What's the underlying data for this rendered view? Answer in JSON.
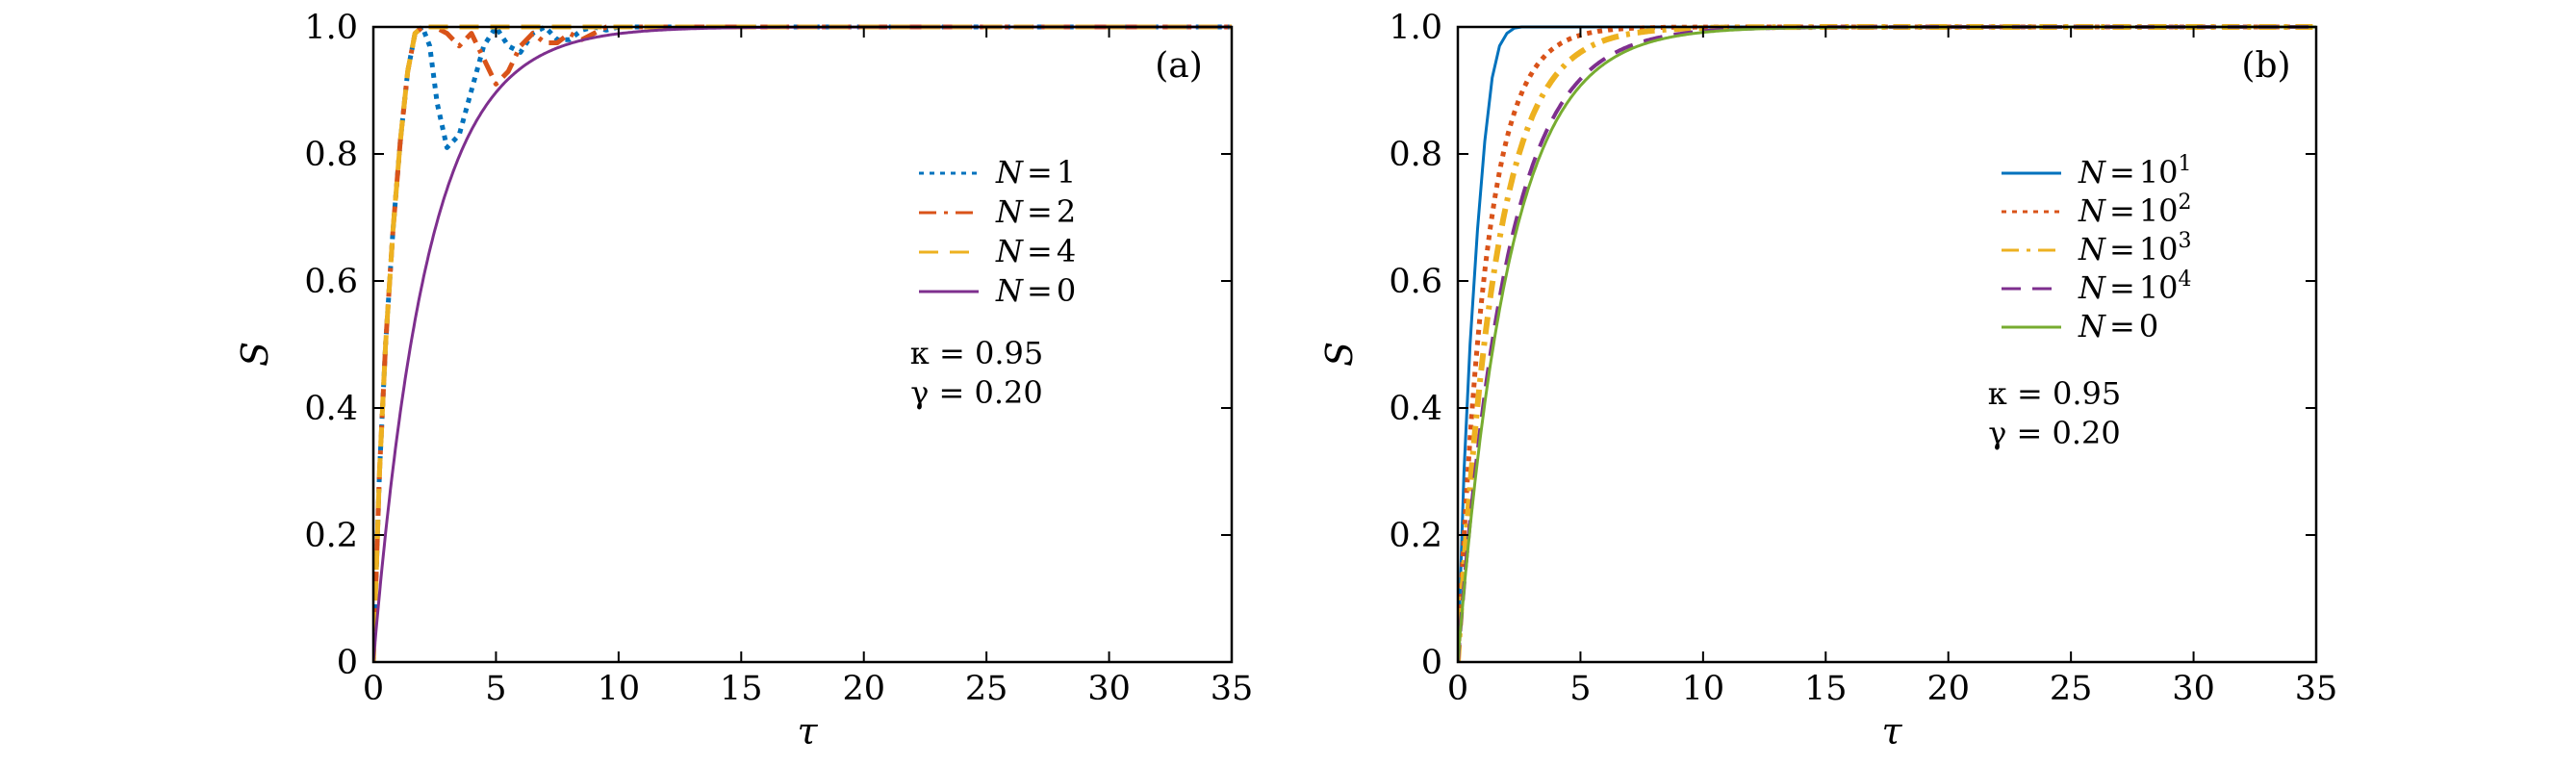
{
  "chart_data": [
    {
      "type": "line",
      "panel_label": "(a)",
      "xlabel": "τ",
      "ylabel": "S",
      "xlim": [
        0,
        35
      ],
      "ylim": [
        0,
        1.0
      ],
      "xticks": [
        "0",
        "5",
        "10",
        "15",
        "20",
        "25",
        "30",
        "35"
      ],
      "yticks": [
        "0",
        "0.2",
        "0.4",
        "0.6",
        "0.8",
        "1.0"
      ],
      "grid": false,
      "legend_position": "right, upper-middle",
      "legend": [
        {
          "var": "N",
          "eq": "=",
          "val": "1",
          "sup": "",
          "color": "#0072BD",
          "dash": "dotted"
        },
        {
          "var": "N",
          "eq": "=",
          "val": "2",
          "sup": "",
          "color": "#D95319",
          "dash": "dashdot"
        },
        {
          "var": "N",
          "eq": "=",
          "val": "4",
          "sup": "",
          "color": "#EDB120",
          "dash": "dashed"
        },
        {
          "var": "N",
          "eq": "=",
          "val": "0",
          "sup": "",
          "color": "#7E2F8E",
          "dash": "solid"
        }
      ],
      "params": [
        "κ = 0.95",
        "γ = 0.20"
      ],
      "series": [
        {
          "name": "N = 1",
          "color": "#0072BD",
          "dash": "dotted",
          "width": 5,
          "x": [
            0,
            0.25,
            0.5,
            0.8,
            1.1,
            1.4,
            1.7,
            2.0,
            2.3,
            2.6,
            3.0,
            3.5,
            4.0,
            4.5,
            5.0,
            5.5,
            6.0,
            6.5,
            7.0,
            7.5,
            8.0,
            8.5,
            9.0,
            9.5,
            10,
            12,
            35
          ],
          "y": [
            0,
            0.3,
            0.5,
            0.68,
            0.82,
            0.93,
            0.99,
            1.0,
            0.97,
            0.88,
            0.81,
            0.83,
            0.9,
            0.97,
            1.0,
            0.97,
            0.96,
            0.99,
            1.0,
            0.98,
            0.98,
            0.995,
            1.0,
            0.995,
            1.0,
            1.0,
            1.0
          ]
        },
        {
          "name": "N = 2",
          "color": "#D95319",
          "dash": "dashdot",
          "width": 5,
          "x": [
            0,
            0.25,
            0.5,
            0.8,
            1.1,
            1.4,
            1.7,
            2.0,
            2.5,
            3.0,
            3.5,
            4.0,
            4.5,
            5.0,
            5.5,
            6.0,
            6.5,
            7.0,
            7.5,
            8.0,
            8.5,
            9.0,
            9.5,
            10,
            12,
            35
          ],
          "y": [
            0,
            0.3,
            0.5,
            0.68,
            0.82,
            0.93,
            0.99,
            1.0,
            1.0,
            0.99,
            0.97,
            0.99,
            0.95,
            0.91,
            0.93,
            0.97,
            0.99,
            0.975,
            0.975,
            0.99,
            0.98,
            0.99,
            1.0,
            1.0,
            1.0,
            1.0
          ]
        },
        {
          "name": "N = 4",
          "color": "#EDB120",
          "dash": "dashed",
          "width": 5,
          "x": [
            0,
            0.25,
            0.5,
            0.8,
            1.1,
            1.4,
            1.7,
            2.0,
            2.5,
            3.0,
            35
          ],
          "y": [
            0,
            0.3,
            0.5,
            0.68,
            0.82,
            0.93,
            0.99,
            1.0,
            1.0,
            1.0,
            1.0
          ]
        },
        {
          "name": "N = 0",
          "color": "#7E2F8E",
          "dash": "solid",
          "width": 3,
          "func": "1-exp(-t/2.2)"
        }
      ]
    },
    {
      "type": "line",
      "panel_label": "(b)",
      "xlabel": "τ",
      "ylabel": "S",
      "xlim": [
        0,
        35
      ],
      "ylim": [
        0,
        1.0
      ],
      "xticks": [
        "0",
        "5",
        "10",
        "15",
        "20",
        "25",
        "30",
        "35"
      ],
      "yticks": [
        "0",
        "0.2",
        "0.4",
        "0.6",
        "0.8",
        "1.0"
      ],
      "grid": false,
      "legend_position": "right, upper-middle",
      "legend": [
        {
          "var": "N",
          "eq": "=",
          "val": "10",
          "sup": "1",
          "color": "#0072BD",
          "dash": "solid"
        },
        {
          "var": "N",
          "eq": "=",
          "val": "10",
          "sup": "2",
          "color": "#D95319",
          "dash": "dotted"
        },
        {
          "var": "N",
          "eq": "=",
          "val": "10",
          "sup": "3",
          "color": "#EDB120",
          "dash": "dashdot"
        },
        {
          "var": "N",
          "eq": "=",
          "val": "10",
          "sup": "4",
          "color": "#7E2F8E",
          "dash": "dashed"
        },
        {
          "var": "N",
          "eq": "=",
          "val": "0",
          "sup": "",
          "color": "#77AC30",
          "dash": "solid"
        }
      ],
      "params": [
        "κ = 0.95",
        "γ = 0.20"
      ],
      "series": [
        {
          "name": "N = 10^1",
          "color": "#0072BD",
          "dash": "solid",
          "width": 3,
          "x": [
            0,
            0.25,
            0.5,
            0.8,
            1.1,
            1.4,
            1.7,
            2.0,
            2.3,
            2.6,
            3.0,
            35
          ],
          "y": [
            0,
            0.3,
            0.5,
            0.68,
            0.82,
            0.92,
            0.97,
            0.99,
            0.998,
            1.0,
            1.0,
            1.0
          ]
        },
        {
          "name": "N = 10^2",
          "color": "#D95319",
          "dash": "dotted",
          "width": 5,
          "func": "1-exp(-t/1.15)"
        },
        {
          "name": "N = 10^3",
          "color": "#EDB120",
          "dash": "dashdot",
          "width": 6,
          "func": "1-exp(-t/1.55)"
        },
        {
          "name": "N = 10^4",
          "color": "#7E2F8E",
          "dash": "dashed",
          "width": 4,
          "func": "1-exp(-t/2.0)"
        },
        {
          "name": "N = 0",
          "color": "#77AC30",
          "dash": "solid",
          "width": 3,
          "func": "1-exp(-t/2.1)"
        }
      ]
    }
  ]
}
